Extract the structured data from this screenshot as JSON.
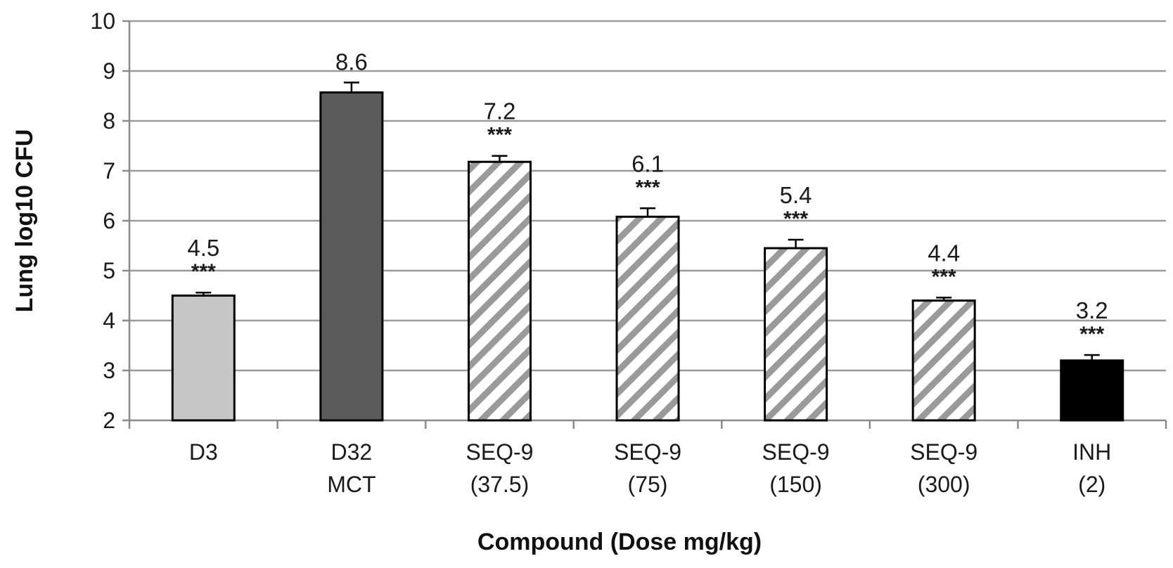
{
  "chart_data": {
    "type": "bar",
    "title": "",
    "xlabel": "Compound (Dose mg/kg)",
    "ylabel": "Lung log10 CFU",
    "ylim": [
      2,
      10
    ],
    "yticks": [
      "2",
      "3",
      "4",
      "5",
      "6",
      "7",
      "8",
      "9",
      "10"
    ],
    "grid": true,
    "categories": [
      [
        "D3"
      ],
      [
        "D32",
        "MCT"
      ],
      [
        "SEQ-9",
        "(37.5)"
      ],
      [
        "SEQ-9",
        "(75)"
      ],
      [
        "SEQ-9",
        "(150)"
      ],
      [
        "SEQ-9",
        "(300)"
      ],
      [
        "INH",
        "(2)"
      ]
    ],
    "values": [
      4.5,
      8.57,
      7.18,
      6.08,
      5.45,
      4.4,
      3.2
    ],
    "error": [
      0.06,
      0.2,
      0.12,
      0.17,
      0.17,
      0.06,
      0.11
    ],
    "value_labels": [
      "4.5",
      "8.6",
      "7.2",
      "6.1",
      "5.4",
      "4.4",
      "3.2"
    ],
    "significance": [
      "***",
      "",
      "***",
      "***",
      "***",
      "***",
      "***"
    ],
    "bar_styles": [
      "light-gray",
      "dark-gray",
      "hatched",
      "hatched",
      "hatched",
      "hatched",
      "black"
    ],
    "colors": {
      "light_gray": "#c6c6c6",
      "dark_gray": "#5b5b5b",
      "black": "#000000",
      "hatch": "#9a9a9a",
      "grid": "#9b9b9b",
      "axis": "#8a8a8a"
    }
  }
}
